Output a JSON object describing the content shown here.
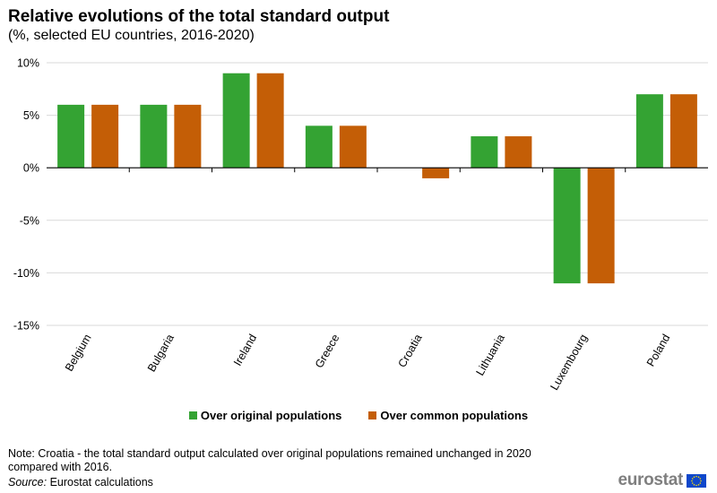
{
  "title": "Relative evolutions of the total standard output",
  "subtitle": "(%, selected EU countries, 2016-2020)",
  "colors": {
    "original": "#34a333",
    "common": "#c45e06",
    "grid": "#d9d9d9",
    "axis": "#000000"
  },
  "chart_data": {
    "type": "bar",
    "categories": [
      "Belgium",
      "Bulgaria",
      "Ireland",
      "Greece",
      "Croatia",
      "Lithuania",
      "Luxembourg",
      "Poland"
    ],
    "series": [
      {
        "name": "Over original populations",
        "values": [
          6,
          6,
          9,
          4,
          0,
          3,
          -11,
          7
        ]
      },
      {
        "name": "Over common populations",
        "values": [
          6,
          6,
          9,
          4,
          -1,
          3,
          -11,
          7
        ]
      }
    ],
    "ylim": [
      -15,
      10
    ],
    "yticks": [
      10,
      5,
      0,
      -5,
      -10,
      -15
    ],
    "ytick_labels": [
      "10%",
      "5%",
      "0%",
      "-5%",
      "-10%",
      "-15%"
    ],
    "xlabel": "",
    "ylabel": "",
    "grid": true,
    "legend_position": "bottom"
  },
  "note": "Note: Croatia - the total standard output calculated over original populations remained unchanged in 2020 compared with 2016.",
  "source": {
    "label": "Source:",
    "text": " Eurostat calculations"
  },
  "logo": {
    "text": "eurostat",
    "flag_icon": "eu-flag-icon"
  }
}
